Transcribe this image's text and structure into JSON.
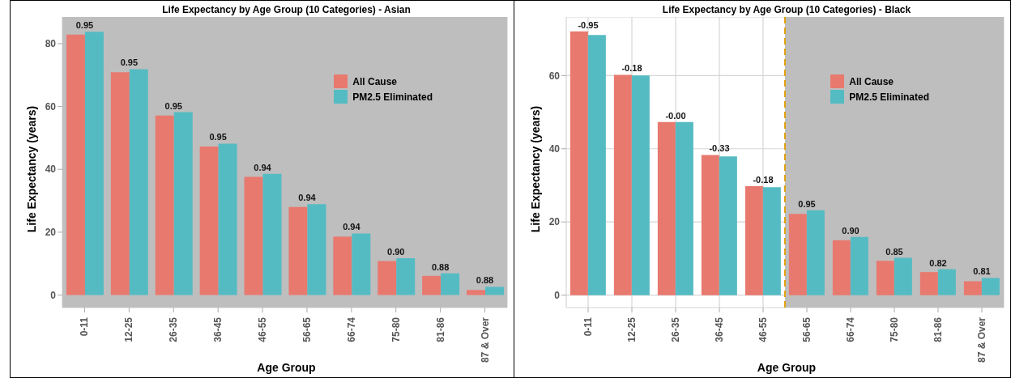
{
  "chart_data": [
    {
      "type": "bar",
      "title": "Life Expectancy by Age Group (10 Categories) - Asian",
      "xlabel": "Age Group",
      "ylabel": "Life Expectancy (years)",
      "categories": [
        "0-11",
        "12-25",
        "26-35",
        "36-45",
        "46-55",
        "56-65",
        "66-74",
        "75-80",
        "81-86",
        "87 & Over"
      ],
      "series": [
        {
          "name": "All Cause",
          "color": "#e8796f",
          "values": [
            82.9,
            70.9,
            57.1,
            47.3,
            37.6,
            28.0,
            18.6,
            10.8,
            6.1,
            1.6
          ]
        },
        {
          "name": "PM2.5 Eliminated",
          "color": "#55bbc3",
          "values": [
            83.8,
            71.9,
            58.2,
            48.2,
            38.6,
            28.9,
            19.6,
            11.7,
            6.9,
            2.6
          ]
        }
      ],
      "annotations": [
        {
          "text": "0.95",
          "x": "0-11",
          "y": 83.8
        },
        {
          "text": "0.95",
          "x": "12-25",
          "y": 71.9
        },
        {
          "text": "0.95",
          "x": "26-35",
          "y": 58.2
        },
        {
          "text": "0.95",
          "x": "36-45",
          "y": 48.2
        },
        {
          "text": "0.94",
          "x": "46-55",
          "y": 38.6
        },
        {
          "text": "0.94",
          "x": "56-65",
          "y": 28.9
        },
        {
          "text": "0.94",
          "x": "66-74",
          "y": 19.6
        },
        {
          "text": "0.90",
          "x": "75-80",
          "y": 11.7
        },
        {
          "text": "0.88",
          "x": "81-86",
          "y": 6.9
        },
        {
          "text": "0.88",
          "x": "87 & Over",
          "y": 2.6
        }
      ],
      "ylim": [
        -4,
        88.5
      ],
      "yticks": [
        0,
        20,
        40,
        60,
        80
      ],
      "grid": true,
      "legend": "top right",
      "bands": [
        {
          "axis": "x",
          "from": "0-11",
          "to": "87 & Over",
          "color": "#bebebe"
        }
      ]
    },
    {
      "type": "bar",
      "title": "Life Expectancy by Age Group (10 Categories) - Black",
      "xlabel": "Age Group",
      "ylabel": "Life Expectancy (years)",
      "categories": [
        "0-11",
        "12-25",
        "26-35",
        "36-45",
        "46-55",
        "56-65",
        "66-74",
        "75-80",
        "81-86",
        "87 & Over"
      ],
      "series": [
        {
          "name": "All Cause",
          "color": "#e8796f",
          "values": [
            72.1,
            60.2,
            47.3,
            38.3,
            29.8,
            22.2,
            15.0,
            9.4,
            6.3,
            3.8
          ]
        },
        {
          "name": "PM2.5 Eliminated",
          "color": "#55bbc3",
          "values": [
            71.1,
            60.0,
            47.3,
            37.9,
            29.5,
            23.2,
            15.9,
            10.2,
            7.1,
            4.7
          ]
        }
      ],
      "annotations": [
        {
          "text": "-0.95",
          "x": "0-11",
          "y": 72.1
        },
        {
          "text": "-0.18",
          "x": "12-25",
          "y": 60.2
        },
        {
          "text": "-0.00",
          "x": "26-35",
          "y": 47.3
        },
        {
          "text": "-0.33",
          "x": "36-45",
          "y": 38.3
        },
        {
          "text": "-0.18",
          "x": "46-55",
          "y": 29.8
        },
        {
          "text": "0.95",
          "x": "56-65",
          "y": 23.2
        },
        {
          "text": "0.90",
          "x": "66-74",
          "y": 15.9
        },
        {
          "text": "0.85",
          "x": "75-80",
          "y": 10.2
        },
        {
          "text": "0.82",
          "x": "81-86",
          "y": 7.1
        },
        {
          "text": "0.81",
          "x": "87 & Over",
          "y": 4.7
        }
      ],
      "ylim": [
        -3.4,
        76
      ],
      "yticks": [
        0,
        20,
        40,
        60
      ],
      "grid": true,
      "legend": "top right",
      "bands": [
        {
          "axis": "x",
          "from": "56-65",
          "to": "87 & Over",
          "color": "#bebebe"
        }
      ],
      "ref_lines": [
        {
          "axis": "x",
          "value": "56-65",
          "color": "#e0a010",
          "line_style": "dashed"
        }
      ]
    }
  ]
}
